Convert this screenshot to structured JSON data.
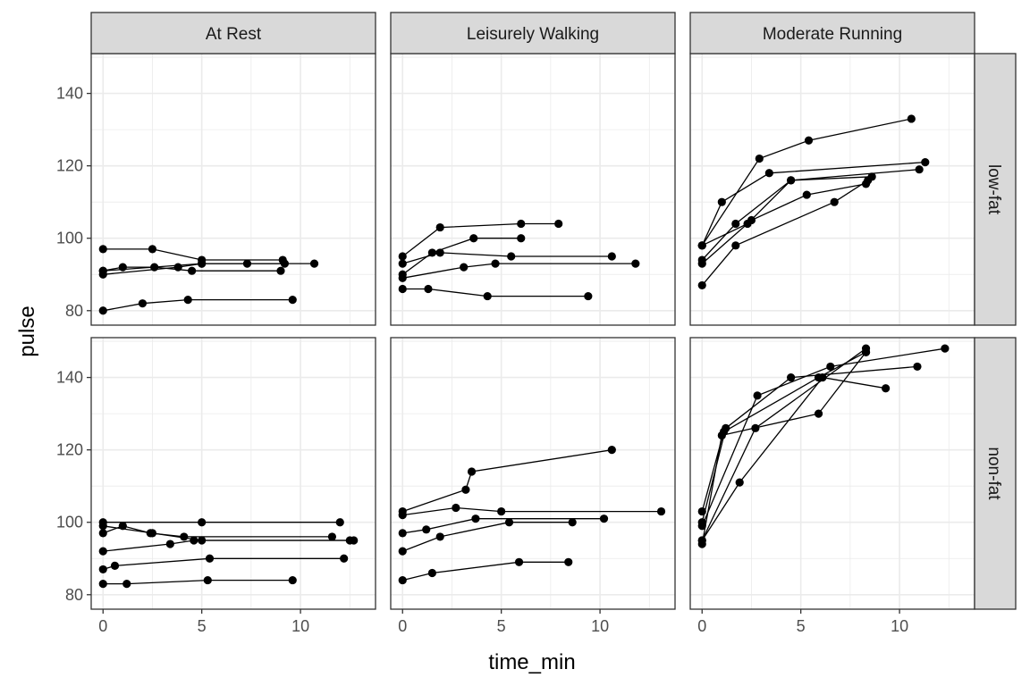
{
  "chart_data": {
    "type": "line",
    "xlabel": "time_min",
    "ylabel": "pulse",
    "xlim": [
      -0.6,
      13.8
    ],
    "ylim": [
      76,
      151
    ],
    "xticks": [
      0,
      5,
      10
    ],
    "yticks": [
      80,
      100,
      120,
      140
    ],
    "col_facets": [
      "At Rest",
      "Leisurely Walking",
      "Moderate Running"
    ],
    "row_facets": [
      "low-fat",
      "non-fat"
    ],
    "grid": true,
    "colors": {
      "line": "#000000",
      "point": "#000000",
      "strip_bg": "#d9d9d9",
      "grid": "#ebebeb",
      "panel_border": "#333333"
    },
    "panels": [
      {
        "col": 0,
        "row": 0,
        "series": [
          [
            [
              0,
              97
            ],
            [
              2.5,
              97
            ],
            [
              5,
              94
            ],
            [
              9.1,
              94
            ]
          ],
          [
            [
              0,
              91
            ],
            [
              1,
              92
            ],
            [
              2.6,
              92
            ],
            [
              4.5,
              91
            ],
            [
              9,
              91
            ]
          ],
          [
            [
              0,
              90
            ],
            [
              3.8,
              92
            ],
            [
              5,
              93
            ],
            [
              7.3,
              93
            ],
            [
              9.2,
              93
            ]
          ],
          [
            [
              0,
              91
            ],
            [
              5,
              93
            ],
            [
              10.7,
              93
            ]
          ],
          [
            [
              0,
              80
            ],
            [
              2,
              82
            ],
            [
              4.3,
              83
            ],
            [
              9.6,
              83
            ]
          ]
        ]
      },
      {
        "col": 1,
        "row": 0,
        "series": [
          [
            [
              0,
              95
            ],
            [
              1.9,
              103
            ],
            [
              6,
              104
            ],
            [
              7.9,
              104
            ]
          ],
          [
            [
              0,
              90
            ],
            [
              1.5,
              96
            ],
            [
              3.6,
              100
            ],
            [
              6,
              100
            ]
          ],
          [
            [
              0,
              93
            ],
            [
              1.9,
              96
            ],
            [
              5.5,
              95
            ],
            [
              10.6,
              95
            ]
          ],
          [
            [
              0,
              89
            ],
            [
              3.1,
              92
            ],
            [
              4.7,
              93
            ],
            [
              11.8,
              93
            ]
          ],
          [
            [
              0,
              86
            ],
            [
              1.3,
              86
            ],
            [
              4.3,
              84
            ],
            [
              9.4,
              84
            ]
          ]
        ]
      },
      {
        "col": 2,
        "row": 0,
        "series": [
          [
            [
              0,
              98
            ],
            [
              2.9,
              122
            ],
            [
              5.4,
              127
            ],
            [
              10.6,
              133
            ]
          ],
          [
            [
              0,
              98
            ],
            [
              1,
              110
            ],
            [
              3.4,
              118
            ],
            [
              11.3,
              121
            ]
          ],
          [
            [
              0,
              94
            ],
            [
              1.7,
              104
            ],
            [
              4.5,
              116
            ],
            [
              8.6,
              117
            ]
          ],
          [
            [
              0,
              93
            ],
            [
              2.5,
              105
            ],
            [
              5.3,
              112
            ],
            [
              8.3,
              115
            ]
          ],
          [
            [
              0,
              87
            ],
            [
              1.7,
              98
            ],
            [
              6.7,
              110
            ],
            [
              8.4,
              116
            ]
          ],
          [
            [
              0,
              98
            ],
            [
              2.3,
              104
            ],
            [
              4.5,
              116
            ],
            [
              11,
              119
            ]
          ]
        ]
      },
      {
        "col": 0,
        "row": 1,
        "series": [
          [
            [
              0,
              100
            ],
            [
              5,
              100
            ],
            [
              12,
              100
            ]
          ],
          [
            [
              0,
              97
            ],
            [
              1,
              99
            ],
            [
              2.4,
              97
            ],
            [
              4.1,
              96
            ],
            [
              11.6,
              96
            ]
          ],
          [
            [
              0,
              99
            ],
            [
              2.5,
              97
            ],
            [
              5,
              95
            ],
            [
              12.7,
              95
            ]
          ],
          [
            [
              0,
              92
            ],
            [
              3.4,
              94
            ],
            [
              4.6,
              95
            ],
            [
              12.5,
              95
            ]
          ],
          [
            [
              0,
              87
            ],
            [
              0.6,
              88
            ],
            [
              5.4,
              90
            ],
            [
              12.2,
              90
            ]
          ],
          [
            [
              0,
              83
            ],
            [
              1.2,
              83
            ],
            [
              5.3,
              84
            ],
            [
              9.6,
              84
            ]
          ]
        ]
      },
      {
        "col": 1,
        "row": 1,
        "series": [
          [
            [
              0,
              103
            ],
            [
              3.2,
              109
            ],
            [
              3.5,
              114
            ],
            [
              10.6,
              120
            ]
          ],
          [
            [
              0,
              102
            ],
            [
              2.7,
              104
            ],
            [
              5,
              103
            ],
            [
              13.1,
              103
            ]
          ],
          [
            [
              0,
              97
            ],
            [
              1.2,
              98
            ],
            [
              3.7,
              101
            ],
            [
              10.2,
              101
            ]
          ],
          [
            [
              0,
              92
            ],
            [
              1.9,
              96
            ],
            [
              5.4,
              100
            ],
            [
              8.6,
              100
            ]
          ],
          [
            [
              0,
              84
            ],
            [
              1.5,
              86
            ],
            [
              5.9,
              89
            ],
            [
              8.4,
              89
            ]
          ]
        ]
      },
      {
        "col": 2,
        "row": 1,
        "series": [
          [
            [
              0,
              103
            ],
            [
              1.1,
              125
            ],
            [
              5.9,
              140
            ],
            [
              8.3,
              147
            ]
          ],
          [
            [
              0,
              100
            ],
            [
              1.2,
              126
            ],
            [
              4.5,
              140
            ],
            [
              10.9,
              143
            ]
          ],
          [
            [
              0,
              99
            ],
            [
              2.8,
              135
            ],
            [
              6.5,
              143
            ],
            [
              12.3,
              148
            ]
          ],
          [
            [
              0,
              95
            ],
            [
              2.7,
              126
            ],
            [
              8.3,
              148
            ]
          ],
          [
            [
              0,
              95
            ],
            [
              1.9,
              111
            ],
            [
              6.1,
              140
            ],
            [
              9.3,
              137
            ]
          ],
          [
            [
              0,
              94
            ],
            [
              1,
              124
            ],
            [
              5.9,
              130
            ],
            [
              8.3,
              147
            ]
          ]
        ]
      }
    ]
  }
}
